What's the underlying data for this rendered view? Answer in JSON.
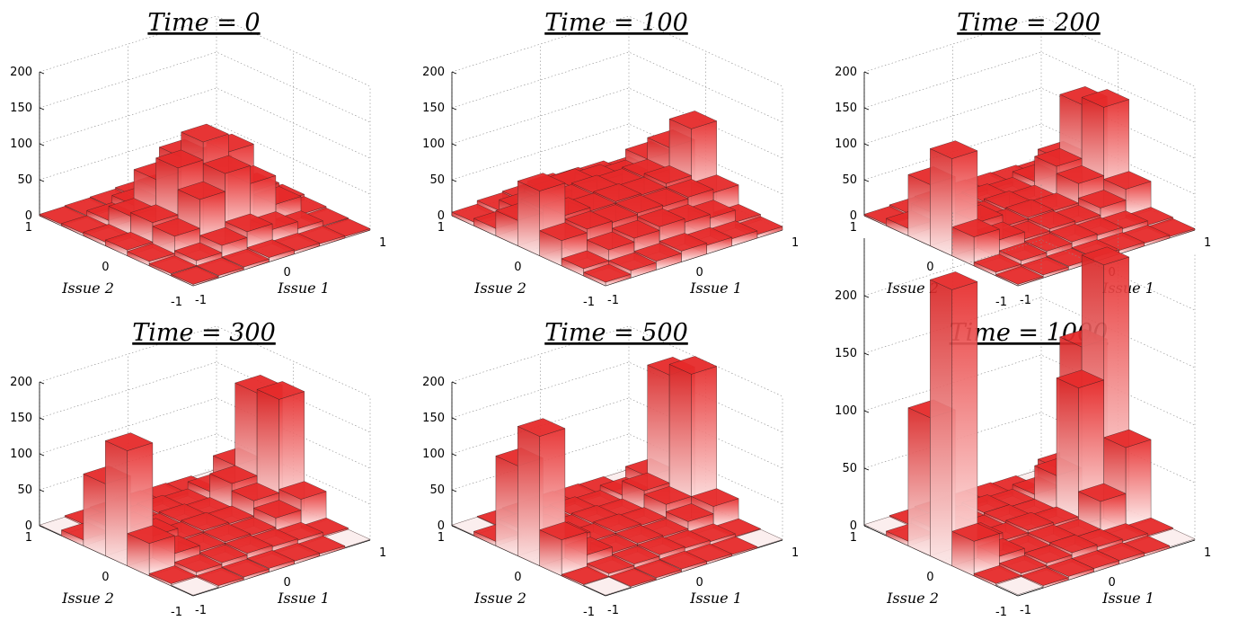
{
  "colors": {
    "bar_top": "#e62a2a",
    "bar_bottom": "#fff2f2",
    "floor_tile": "#fbeeee",
    "edge": "#3a2020"
  },
  "chart_data": [
    {
      "type": "bar3d",
      "title": "Time = 0",
      "xlabel": "Issue 1",
      "ylabel": "Issue 2",
      "x_ticks": [
        "-1",
        "0",
        "1"
      ],
      "y_ticks": [
        "-1",
        "0",
        "1"
      ],
      "z_ticks": [
        "0",
        "50",
        "100",
        "150",
        "200"
      ],
      "zlim": [
        0,
        200
      ],
      "grid": true,
      "values": [
        [
          2,
          3,
          4,
          6,
          4,
          3,
          2
        ],
        [
          3,
          10,
          20,
          28,
          20,
          10,
          3
        ],
        [
          6,
          30,
          70,
          95,
          70,
          30,
          5
        ],
        [
          8,
          35,
          100,
          125,
          100,
          35,
          8
        ],
        [
          5,
          30,
          70,
          90,
          70,
          30,
          5
        ],
        [
          3,
          10,
          20,
          30,
          20,
          10,
          3
        ],
        [
          2,
          3,
          4,
          6,
          4,
          3,
          2
        ]
      ]
    },
    {
      "type": "bar3d",
      "title": "Time = 100",
      "xlabel": "Issue 1",
      "ylabel": "Issue 2",
      "x_ticks": [
        "-1",
        "0",
        "1"
      ],
      "y_ticks": [
        "-1",
        "0",
        "1"
      ],
      "z_ticks": [
        "0",
        "50",
        "100",
        "150",
        "200"
      ],
      "zlim": [
        0,
        200
      ],
      "grid": true,
      "values": [
        [
          5,
          10,
          12,
          15,
          12,
          10,
          5
        ],
        [
          10,
          25,
          30,
          35,
          30,
          25,
          8
        ],
        [
          35,
          40,
          38,
          40,
          38,
          40,
          35
        ],
        [
          90,
          45,
          40,
          42,
          40,
          45,
          110
        ],
        [
          35,
          40,
          38,
          40,
          38,
          40,
          70
        ],
        [
          10,
          25,
          30,
          35,
          30,
          25,
          40
        ],
        [
          5,
          10,
          12,
          15,
          12,
          10,
          5
        ]
      ]
    },
    {
      "type": "bar3d",
      "title": "Time = 200",
      "xlabel": "Issue 1",
      "ylabel": "Issue 2",
      "x_ticks": [
        "-1",
        "0",
        "1"
      ],
      "y_ticks": [
        "-1",
        "0",
        "1"
      ],
      "z_ticks": [
        "0",
        "50",
        "100",
        "150",
        "200"
      ],
      "zlim": [
        0,
        200
      ],
      "grid": true,
      "values": [
        [
          2,
          4,
          5,
          6,
          5,
          4,
          2
        ],
        [
          5,
          10,
          12,
          14,
          12,
          10,
          4
        ],
        [
          40,
          25,
          15,
          18,
          15,
          25,
          40
        ],
        [
          135,
          35,
          18,
          20,
          18,
          45,
          140
        ],
        [
          85,
          30,
          15,
          18,
          15,
          55,
          130
        ],
        [
          10,
          20,
          12,
          14,
          12,
          20,
          40
        ],
        [
          2,
          4,
          5,
          6,
          5,
          4,
          2
        ]
      ]
    },
    {
      "type": "bar3d",
      "title": "Time = 300",
      "xlabel": "Issue 1",
      "ylabel": "Issue 2",
      "x_ticks": [
        "-1",
        "0",
        "1"
      ],
      "y_ticks": [
        "-1",
        "0",
        "1"
      ],
      "z_ticks": [
        "0",
        "50",
        "100",
        "150",
        "200"
      ],
      "zlim": [
        0,
        200
      ],
      "grid": true,
      "values": [
        [
          1,
          3,
          4,
          5,
          4,
          3,
          1
        ],
        [
          3,
          8,
          10,
          12,
          10,
          8,
          3
        ],
        [
          45,
          20,
          12,
          14,
          12,
          25,
          40
        ],
        [
          160,
          30,
          14,
          16,
          14,
          35,
          165
        ],
        [
          100,
          25,
          12,
          14,
          12,
          45,
          160
        ],
        [
          8,
          15,
          10,
          12,
          10,
          20,
          45
        ],
        [
          1,
          3,
          4,
          5,
          4,
          3,
          1
        ]
      ]
    },
    {
      "type": "bar3d",
      "title": "Time = 500",
      "xlabel": "Issue 1",
      "ylabel": "Issue 2",
      "x_ticks": [
        "-1",
        "0",
        "1"
      ],
      "y_ticks": [
        "-1",
        "0",
        "1"
      ],
      "z_ticks": [
        "0",
        "50",
        "100",
        "150",
        "200"
      ],
      "zlim": [
        0,
        200
      ],
      "grid": true,
      "values": [
        [
          1,
          2,
          3,
          4,
          3,
          2,
          1
        ],
        [
          2,
          6,
          8,
          10,
          8,
          6,
          2
        ],
        [
          50,
          18,
          10,
          12,
          10,
          20,
          30
        ],
        [
          180,
          25,
          12,
          14,
          12,
          30,
          200
        ],
        [
          125,
          22,
          10,
          12,
          10,
          35,
          185
        ],
        [
          6,
          12,
          8,
          10,
          8,
          15,
          30
        ],
        [
          1,
          2,
          3,
          4,
          3,
          2,
          1
        ]
      ]
    },
    {
      "type": "bar3d",
      "title": "Time = 1000",
      "xlabel": "Issue 1",
      "ylabel": "Issue 2",
      "x_ticks": [
        "-1",
        "0",
        "1"
      ],
      "y_ticks": [
        "-1",
        "0",
        "1"
      ],
      "z_ticks": [
        "0",
        "50",
        "100",
        "150",
        "200"
      ],
      "zlim": [
        0,
        250
      ],
      "grid": true,
      "values": [
        [
          1,
          2,
          3,
          3,
          3,
          2,
          1
        ],
        [
          2,
          4,
          6,
          8,
          6,
          4,
          2
        ],
        [
          30,
          10,
          6,
          8,
          6,
          30,
          70
        ],
        [
          240,
          15,
          8,
          10,
          8,
          120,
          220
        ],
        [
          120,
          12,
          6,
          8,
          6,
          35,
          140
        ],
        [
          4,
          8,
          6,
          8,
          6,
          10,
          25
        ],
        [
          1,
          2,
          3,
          3,
          3,
          2,
          1
        ]
      ]
    }
  ]
}
